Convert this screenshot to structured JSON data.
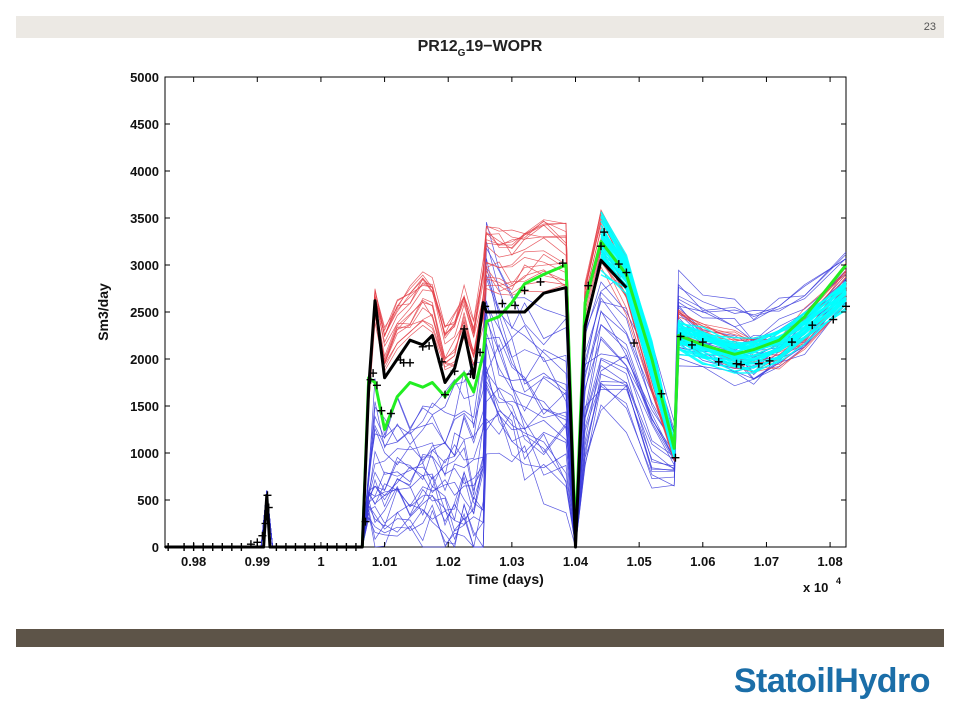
{
  "slide": {
    "page_number": "23",
    "logo_text": "StatoilHydro"
  },
  "colors": {
    "top_bar": "#ece9e4",
    "bottom_band": "#5d5448",
    "logo": "#1b6ea8",
    "ensemble_blue": "#3b3bdc",
    "ensemble_red": "#e4424a",
    "ensemble_cyan": "#00ffff",
    "truth_black": "#000000",
    "mean_green": "#22ee22"
  },
  "chart_data": {
    "type": "line",
    "title": {
      "prefix": "PR12",
      "subscript": "G",
      "suffix": "19−WOPR"
    },
    "xlabel": "Time (days)",
    "ylabel": "Sm3/day",
    "x_multiplier_label": "x 10",
    "x_multiplier_exponent": "4",
    "xlim": [
      0.9755,
      1.0825
    ],
    "ylim": [
      0,
      5000
    ],
    "x_ticks": [
      0.98,
      0.99,
      1.0,
      1.01,
      1.02,
      1.03,
      1.04,
      1.05,
      1.06,
      1.07,
      1.08
    ],
    "x_tick_labels": [
      "0.98",
      "0.99",
      "1",
      "1.01",
      "1.02",
      "1.03",
      "1.04",
      "1.05",
      "1.06",
      "1.07",
      "1.08"
    ],
    "y_ticks": [
      0,
      500,
      1000,
      1500,
      2000,
      2500,
      3000,
      3500,
      4000,
      4500,
      5000
    ],
    "y_tick_labels": [
      "0",
      "500",
      "1000",
      "1500",
      "2000",
      "2500",
      "3000",
      "3500",
      "4000",
      "4500",
      "5000"
    ],
    "grid": false,
    "series": [
      {
        "style": "ensemble-blue",
        "color": "#3b3bdc",
        "x": [
          0.9755,
          0.9906,
          0.9915,
          0.9924,
          1.0065,
          1.0075,
          1.0085,
          1.01,
          1.012,
          1.014,
          1.016,
          1.0175,
          1.0195,
          1.021,
          1.0225,
          1.024,
          1.0255,
          1.026,
          1.028,
          1.03,
          1.032,
          1.035,
          1.0385,
          1.04,
          1.0415,
          1.044,
          1.048,
          1.052,
          1.0555,
          1.0562,
          1.06,
          1.065,
          1.068,
          1.072,
          1.076,
          1.0825
        ],
        "y": [
          0,
          0,
          600,
          0,
          0,
          600,
          850,
          750,
          850,
          800,
          850,
          900,
          800,
          900,
          1000,
          850,
          1200,
          2400,
          2100,
          1900,
          1700,
          1600,
          1500,
          50,
          1700,
          2300,
          2200,
          1400,
          1000,
          2450,
          2300,
          2200,
          2150,
          2250,
          2450,
          2900
        ],
        "spread": [
          0,
          0,
          0,
          0,
          0,
          300,
          950,
          800,
          820,
          860,
          880,
          900,
          870,
          1000,
          1050,
          1150,
          1300,
          1300,
          1100,
          1050,
          1050,
          1050,
          1050,
          50,
          1000,
          1000,
          950,
          800,
          400,
          500,
          450,
          450,
          450,
          450,
          430,
          350
        ]
      },
      {
        "style": "ensemble-red",
        "color": "#e4424a",
        "x": [
          1.0065,
          1.0075,
          1.0085,
          1.01,
          1.012,
          1.014,
          1.016,
          1.0175,
          1.0195,
          1.021,
          1.0225,
          1.024,
          1.0255,
          1.026,
          1.028,
          1.03,
          1.032,
          1.035,
          1.0385,
          1.04,
          1.0415,
          1.044,
          1.048,
          1.052,
          1.0555,
          1.0562,
          1.06,
          1.065,
          1.068,
          1.072,
          1.076,
          1.0825
        ],
        "y": [
          0,
          1600,
          2600,
          2100,
          2400,
          2500,
          2650,
          2600,
          2100,
          2200,
          2500,
          2150,
          2700,
          3100,
          3050,
          3000,
          3100,
          3150,
          3100,
          50,
          2600,
          3300,
          2800,
          1800,
          1000,
          2350,
          2200,
          2100,
          2050,
          2100,
          2300,
          2800
        ],
        "spread": [
          0,
          150,
          200,
          300,
          300,
          320,
          320,
          330,
          320,
          330,
          330,
          300,
          400,
          400,
          400,
          400,
          420,
          430,
          430,
          50,
          300,
          350,
          320,
          250,
          100,
          200,
          220,
          230,
          230,
          240,
          250,
          260
        ]
      },
      {
        "style": "ensemble-cyan",
        "color": "#00ffff",
        "x": [
          1.044,
          1.048,
          1.052,
          1.0555,
          1.0562,
          1.06,
          1.065,
          1.068,
          1.072,
          1.076,
          1.0825
        ],
        "y": [
          3250,
          2900,
          2000,
          1050,
          2250,
          2150,
          2050,
          2050,
          2150,
          2350,
          2700
        ],
        "spread": [
          350,
          250,
          250,
          100,
          200,
          200,
          200,
          200,
          200,
          180,
          180
        ]
      },
      {
        "style": "truth-black",
        "color": "#000000",
        "x": [
          0.9755,
          0.991,
          0.9915,
          0.992,
          1.0065,
          1.0075,
          1.0085,
          1.01,
          1.012,
          1.014,
          1.016,
          1.0175,
          1.0195,
          1.021,
          1.0225,
          1.024,
          1.0255,
          1.026,
          1.028,
          1.03,
          1.032,
          1.035,
          1.0385,
          1.04,
          1.0415,
          1.044,
          1.048
        ],
        "y": [
          0,
          0,
          550,
          0,
          0,
          1700,
          2620,
          1800,
          2000,
          2200,
          2150,
          2250,
          1750,
          1900,
          2300,
          1800,
          2600,
          2500,
          2500,
          2500,
          2500,
          2700,
          2760,
          0,
          2350,
          3050,
          2760
        ]
      },
      {
        "style": "mean-green",
        "color": "#22ee22",
        "x": [
          1.0065,
          1.0075,
          1.0085,
          1.01,
          1.012,
          1.014,
          1.016,
          1.0175,
          1.0195,
          1.021,
          1.0225,
          1.024,
          1.0255,
          1.026,
          1.028,
          1.03,
          1.032,
          1.035,
          1.0385,
          1.04,
          1.0415,
          1.044,
          1.048,
          1.052,
          1.0555,
          1.0562,
          1.06,
          1.065,
          1.068,
          1.072,
          1.076,
          1.0825
        ],
        "y": [
          0,
          1800,
          1750,
          1250,
          1600,
          1750,
          1700,
          1750,
          1600,
          1750,
          1850,
          1650,
          2050,
          2400,
          2450,
          2600,
          2800,
          2900,
          3000,
          100,
          2600,
          3250,
          2900,
          2000,
          1050,
          2250,
          2150,
          2050,
          2100,
          2200,
          2450,
          3000
        ]
      }
    ],
    "observations": {
      "marker": "+",
      "x": [
        0.976,
        0.9785,
        0.98,
        0.9815,
        0.983,
        0.9845,
        0.986,
        0.9875,
        0.989,
        0.99,
        0.9908,
        0.9913,
        0.9916,
        0.9918,
        0.993,
        0.9945,
        0.996,
        0.9975,
        0.999,
        1.001,
        1.0025,
        1.004,
        1.0055,
        1.007,
        1.0078,
        1.0082,
        1.0088,
        1.0095,
        1.011,
        1.0125,
        1.013,
        1.014,
        1.016,
        1.017,
        1.019,
        1.0195,
        1.021,
        1.0225,
        1.0235,
        1.025,
        1.0258,
        1.0285,
        1.0305,
        1.032,
        1.0345,
        1.038,
        1.042,
        1.044,
        1.0445,
        1.0468,
        1.048,
        1.0492,
        1.0535,
        1.0557,
        1.0565,
        1.0583,
        1.06,
        1.0625,
        1.0653,
        1.066,
        1.0688,
        1.0705,
        1.074,
        1.0772,
        1.0805,
        1.0825
      ],
      "y": [
        0,
        0,
        0,
        0,
        0,
        0,
        0,
        0,
        30,
        50,
        120,
        250,
        550,
        420,
        0,
        0,
        0,
        0,
        0,
        0,
        0,
        0,
        0,
        270,
        1780,
        1850,
        1720,
        1450,
        1420,
        1990,
        1960,
        1960,
        2130,
        2140,
        1970,
        1620,
        1870,
        2320,
        1840,
        2070,
        2560,
        2590,
        2570,
        2730,
        2820,
        3020,
        2780,
        3200,
        3350,
        3010,
        2920,
        2170,
        1630,
        950,
        2240,
        2150,
        2180,
        1970,
        1950,
        1940,
        1950,
        1980,
        2180,
        2360,
        2420,
        2560
      ]
    }
  }
}
